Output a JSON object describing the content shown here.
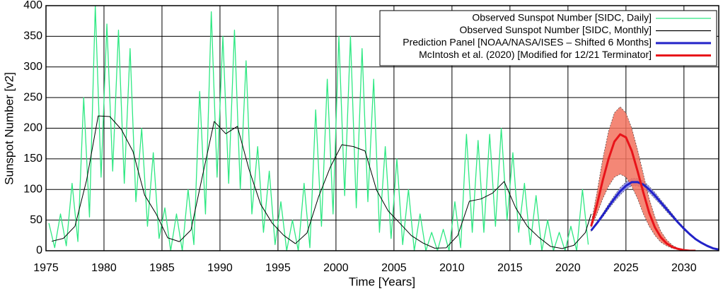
{
  "chart_data": {
    "type": "line",
    "x_label": "Time [Years]",
    "y_label": "Sunspot Number [v2]",
    "xlim": [
      1975,
      2033
    ],
    "ylim": [
      0,
      400
    ],
    "xticks": [
      1975,
      1980,
      1985,
      1990,
      1995,
      2000,
      2005,
      2010,
      2015,
      2020,
      2025,
      2030
    ],
    "yticks": [
      0,
      50,
      100,
      150,
      200,
      250,
      300,
      350,
      400
    ],
    "grid": true,
    "legend": "upper right",
    "series": [
      {
        "name": "Observed Sunspot Number [SIDC, Daily]",
        "color": "#2ee882",
        "x": [
          1975.25,
          1975.75,
          1976.25,
          1976.75,
          1977.25,
          1977.75,
          1978.25,
          1978.75,
          1979.25,
          1979.75,
          1980.25,
          1980.75,
          1981.25,
          1981.75,
          1982.25,
          1982.75,
          1983.25,
          1983.75,
          1984.25,
          1984.75,
          1985.25,
          1985.75,
          1986.25,
          1986.75,
          1987.25,
          1987.75,
          1988.25,
          1988.75,
          1989.25,
          1989.75,
          1990.25,
          1990.75,
          1991.25,
          1991.75,
          1992.25,
          1992.75,
          1993.25,
          1993.75,
          1994.25,
          1994.75,
          1995.25,
          1995.75,
          1996.25,
          1996.75,
          1997.25,
          1997.75,
          1998.25,
          1998.75,
          1999.25,
          1999.75,
          2000.25,
          2000.75,
          2001.25,
          2001.75,
          2002.25,
          2002.75,
          2003.25,
          2003.75,
          2004.25,
          2004.75,
          2005.25,
          2005.75,
          2006.25,
          2006.75,
          2007.25,
          2007.75,
          2008.25,
          2008.75,
          2009.25,
          2009.75,
          2010.25,
          2010.75,
          2011.25,
          2011.75,
          2012.25,
          2012.75,
          2013.25,
          2013.75,
          2014.25,
          2014.75,
          2015.25,
          2015.75,
          2016.25,
          2016.75,
          2017.25,
          2017.75,
          2018.25,
          2018.75,
          2019.25,
          2019.75,
          2020.25,
          2020.75,
          2021.25,
          2021.75
        ],
        "values": [
          45,
          5,
          60,
          8,
          110,
          15,
          250,
          55,
          400,
          120,
          370,
          130,
          360,
          110,
          330,
          80,
          200,
          40,
          160,
          20,
          70,
          0,
          60,
          0,
          100,
          10,
          260,
          60,
          390,
          120,
          350,
          110,
          360,
          100,
          310,
          60,
          170,
          30,
          130,
          10,
          80,
          0,
          50,
          0,
          110,
          5,
          230,
          40,
          280,
          60,
          350,
          90,
          350,
          70,
          330,
          80,
          280,
          30,
          170,
          20,
          150,
          10,
          100,
          0,
          60,
          0,
          30,
          0,
          35,
          0,
          80,
          5,
          190,
          30,
          180,
          30,
          190,
          40,
          200,
          50,
          160,
          30,
          110,
          10,
          90,
          0,
          50,
          0,
          30,
          0,
          40,
          0,
          100,
          10
        ]
      },
      {
        "name": "Observed Sunspot Number [SIDC, Monthly]",
        "color": "#000000",
        "x": [
          1975.5,
          1976.5,
          1977.5,
          1978.5,
          1979.5,
          1980.5,
          1981.5,
          1982.5,
          1983.5,
          1984.5,
          1985.5,
          1986.5,
          1987.5,
          1988.5,
          1989.5,
          1990.5,
          1991.5,
          1992.5,
          1993.5,
          1994.5,
          1995.5,
          1996.5,
          1997.5,
          1998.5,
          1999.5,
          2000.5,
          2001.5,
          2002.5,
          2003.5,
          2004.5,
          2005.5,
          2006.5,
          2007.5,
          2008.5,
          2009.5,
          2010.5,
          2011.5,
          2012.5,
          2013.5,
          2014.5,
          2015.5,
          2016.5,
          2017.5,
          2018.5,
          2019.5,
          2020.5,
          2021.5,
          2022
        ],
        "values": [
          15.5,
          20.2,
          40,
          115,
          220,
          219,
          198,
          162,
          91,
          60,
          21,
          14.8,
          33.9,
          123,
          211,
          191,
          203,
          133,
          76,
          45,
          25,
          11.6,
          28.9,
          88,
          136,
          173,
          170,
          163,
          99,
          65,
          45,
          24.7,
          12.6,
          4.2,
          4.8,
          24.9,
          80.8,
          84.5,
          94,
          113,
          69.8,
          39.8,
          21.7,
          7,
          3.6,
          8.8,
          29.6,
          60
        ]
      },
      {
        "name": "Prediction Panel [NOAA/NASA/ISES – Shifted 6 Months]",
        "color": "#2222c8",
        "band_color": "#8c8ce8",
        "x": [
          2022,
          2022.5,
          2023,
          2023.5,
          2024,
          2024.5,
          2025,
          2025.5,
          2026,
          2026.5,
          2027,
          2027.5,
          2028,
          2028.5,
          2029,
          2029.5,
          2030,
          2030.5,
          2031,
          2031.5,
          2032,
          2032.5,
          2033
        ],
        "values": [
          33,
          45,
          58,
          72,
          85,
          97,
          106,
          112,
          112,
          108,
          100,
          90,
          79,
          68,
          57,
          46,
          36,
          27,
          19,
          13,
          8,
          4,
          2
        ],
        "lower": [
          32,
          43,
          55,
          68,
          80,
          91,
          100,
          106,
          106,
          102,
          95,
          85,
          75,
          64,
          54,
          44,
          34,
          26,
          18,
          12,
          7,
          4,
          2
        ],
        "upper": [
          34,
          47,
          61,
          76,
          90,
          103,
          112,
          118,
          118,
          114,
          105,
          95,
          83,
          72,
          60,
          48,
          38,
          28,
          20,
          14,
          9,
          5,
          2
        ]
      },
      {
        "name": "McIntosh et al. (2020) [Modified for 12/21 Terminator]",
        "color": "#e8141a",
        "band_color": "#f2725e",
        "x": [
          2022,
          2022.5,
          2023,
          2023.5,
          2024,
          2024.5,
          2025,
          2025.5,
          2026,
          2026.5,
          2027,
          2027.5,
          2028,
          2028.5,
          2029,
          2029.5,
          2030,
          2030.5,
          2031
        ],
        "values": [
          40,
          75,
          115,
          150,
          178,
          190,
          185,
          163,
          130,
          95,
          62,
          38,
          22,
          12,
          6,
          3,
          1,
          0,
          0
        ],
        "lower": [
          38,
          60,
          85,
          105,
          120,
          125,
          120,
          105,
          85,
          60,
          40,
          25,
          14,
          8,
          4,
          2,
          1,
          0,
          0
        ],
        "upper": [
          45,
          95,
          150,
          195,
          225,
          235,
          225,
          200,
          165,
          125,
          85,
          55,
          32,
          18,
          9,
          4,
          2,
          1,
          0
        ]
      }
    ]
  }
}
